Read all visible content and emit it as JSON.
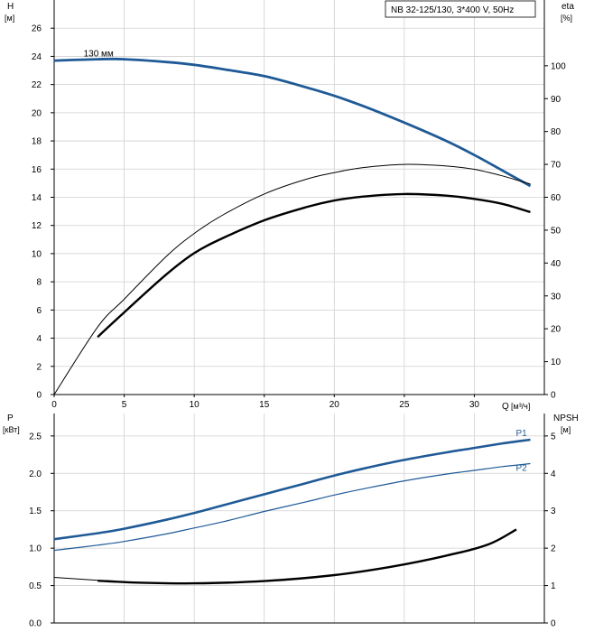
{
  "chart_data": [
    {
      "type": "line",
      "info_box": "NB 32-125/130, 3*400 V, 50Hz",
      "x_axis": {
        "label": "Q",
        "unit": "[м³/ч]",
        "range": [
          0,
          35
        ],
        "ticks": [
          0,
          5,
          10,
          15,
          20,
          25,
          30
        ]
      },
      "y_left": {
        "label": "H",
        "unit": "[м]",
        "range": [
          0,
          28
        ],
        "ticks": [
          0,
          2,
          4,
          6,
          8,
          10,
          12,
          14,
          16,
          18,
          20,
          22,
          24,
          26
        ]
      },
      "y_right": {
        "label": "eta",
        "unit": "[%]",
        "range": [
          0,
          120
        ],
        "ticks": [
          0,
          10,
          20,
          30,
          40,
          50,
          60,
          70,
          80,
          90,
          100
        ]
      },
      "grid": true,
      "series": [
        {
          "name": "130 мм",
          "axis": "left",
          "color": "#1f5a96",
          "width": 2.8,
          "x": [
            0,
            3.1,
            5,
            8,
            10,
            12,
            15,
            18,
            20,
            22,
            25,
            28,
            30,
            32,
            34
          ],
          "y": [
            23.7,
            23.8,
            23.8,
            23.6,
            23.4,
            23.1,
            22.6,
            21.8,
            21.2,
            20.5,
            19.3,
            18.0,
            17.0,
            15.9,
            14.8
          ]
        },
        {
          "axis": "right",
          "color": "#000000",
          "width": 1.0,
          "x": [
            0,
            3.1,
            5,
            8,
            10,
            12,
            15,
            18,
            20,
            22,
            25,
            28,
            30,
            32,
            34
          ],
          "y": [
            0,
            20.5,
            29,
            42,
            49,
            54.5,
            61,
            65.5,
            67.5,
            69,
            70,
            69.5,
            68.5,
            66.5,
            64
          ]
        },
        {
          "axis": "right",
          "color": "#000000",
          "width": 2.4,
          "x": [
            3.1,
            5,
            8,
            10,
            12,
            15,
            18,
            20,
            22,
            25,
            28,
            30,
            32,
            34
          ],
          "y": [
            17.5,
            25,
            36.5,
            43,
            47.5,
            53,
            57,
            59,
            60.2,
            61,
            60.5,
            59.5,
            58,
            55.5
          ]
        }
      ]
    },
    {
      "type": "line",
      "x_axis": {
        "range": [
          0,
          35
        ]
      },
      "y_left": {
        "label": "P",
        "unit": "[кВт]",
        "range": [
          0,
          2.8
        ],
        "ticks": [
          "0.0",
          "0.5",
          "1.0",
          "1.5",
          "2.0",
          "2.5"
        ]
      },
      "y_right": {
        "label": "NPSH",
        "unit": "[м]",
        "range": [
          0,
          5.6
        ],
        "ticks": [
          0,
          1,
          2,
          3,
          4,
          5
        ]
      },
      "grid": true,
      "series": [
        {
          "name": "P1",
          "axis": "left",
          "color": "#1f5a96",
          "width": 2.6,
          "x": [
            0,
            3.1,
            5,
            8,
            10,
            12,
            15,
            18,
            20,
            22,
            25,
            28,
            30,
            32,
            34
          ],
          "y": [
            1.12,
            1.2,
            1.26,
            1.38,
            1.47,
            1.57,
            1.72,
            1.87,
            1.97,
            2.06,
            2.18,
            2.28,
            2.34,
            2.4,
            2.45
          ]
        },
        {
          "name": "P2",
          "axis": "left",
          "color": "#1f5a96",
          "width": 1.2,
          "x": [
            0,
            3.1,
            5,
            8,
            10,
            12,
            15,
            18,
            20,
            22,
            25,
            28,
            30,
            32,
            34
          ],
          "y": [
            0.97,
            1.04,
            1.09,
            1.19,
            1.27,
            1.35,
            1.49,
            1.62,
            1.71,
            1.79,
            1.9,
            1.99,
            2.04,
            2.09,
            2.13
          ]
        },
        {
          "axis": "right",
          "color": "#000000",
          "width": 1.0,
          "x": [
            0,
            3.1
          ],
          "y": [
            1.22,
            1.14
          ]
        },
        {
          "axis": "right",
          "color": "#000000",
          "width": 2.4,
          "x": [
            3.1,
            6,
            10,
            15,
            20,
            24,
            28,
            31,
            33
          ],
          "y": [
            1.13,
            1.08,
            1.06,
            1.12,
            1.28,
            1.5,
            1.8,
            2.1,
            2.5
          ]
        }
      ]
    }
  ]
}
